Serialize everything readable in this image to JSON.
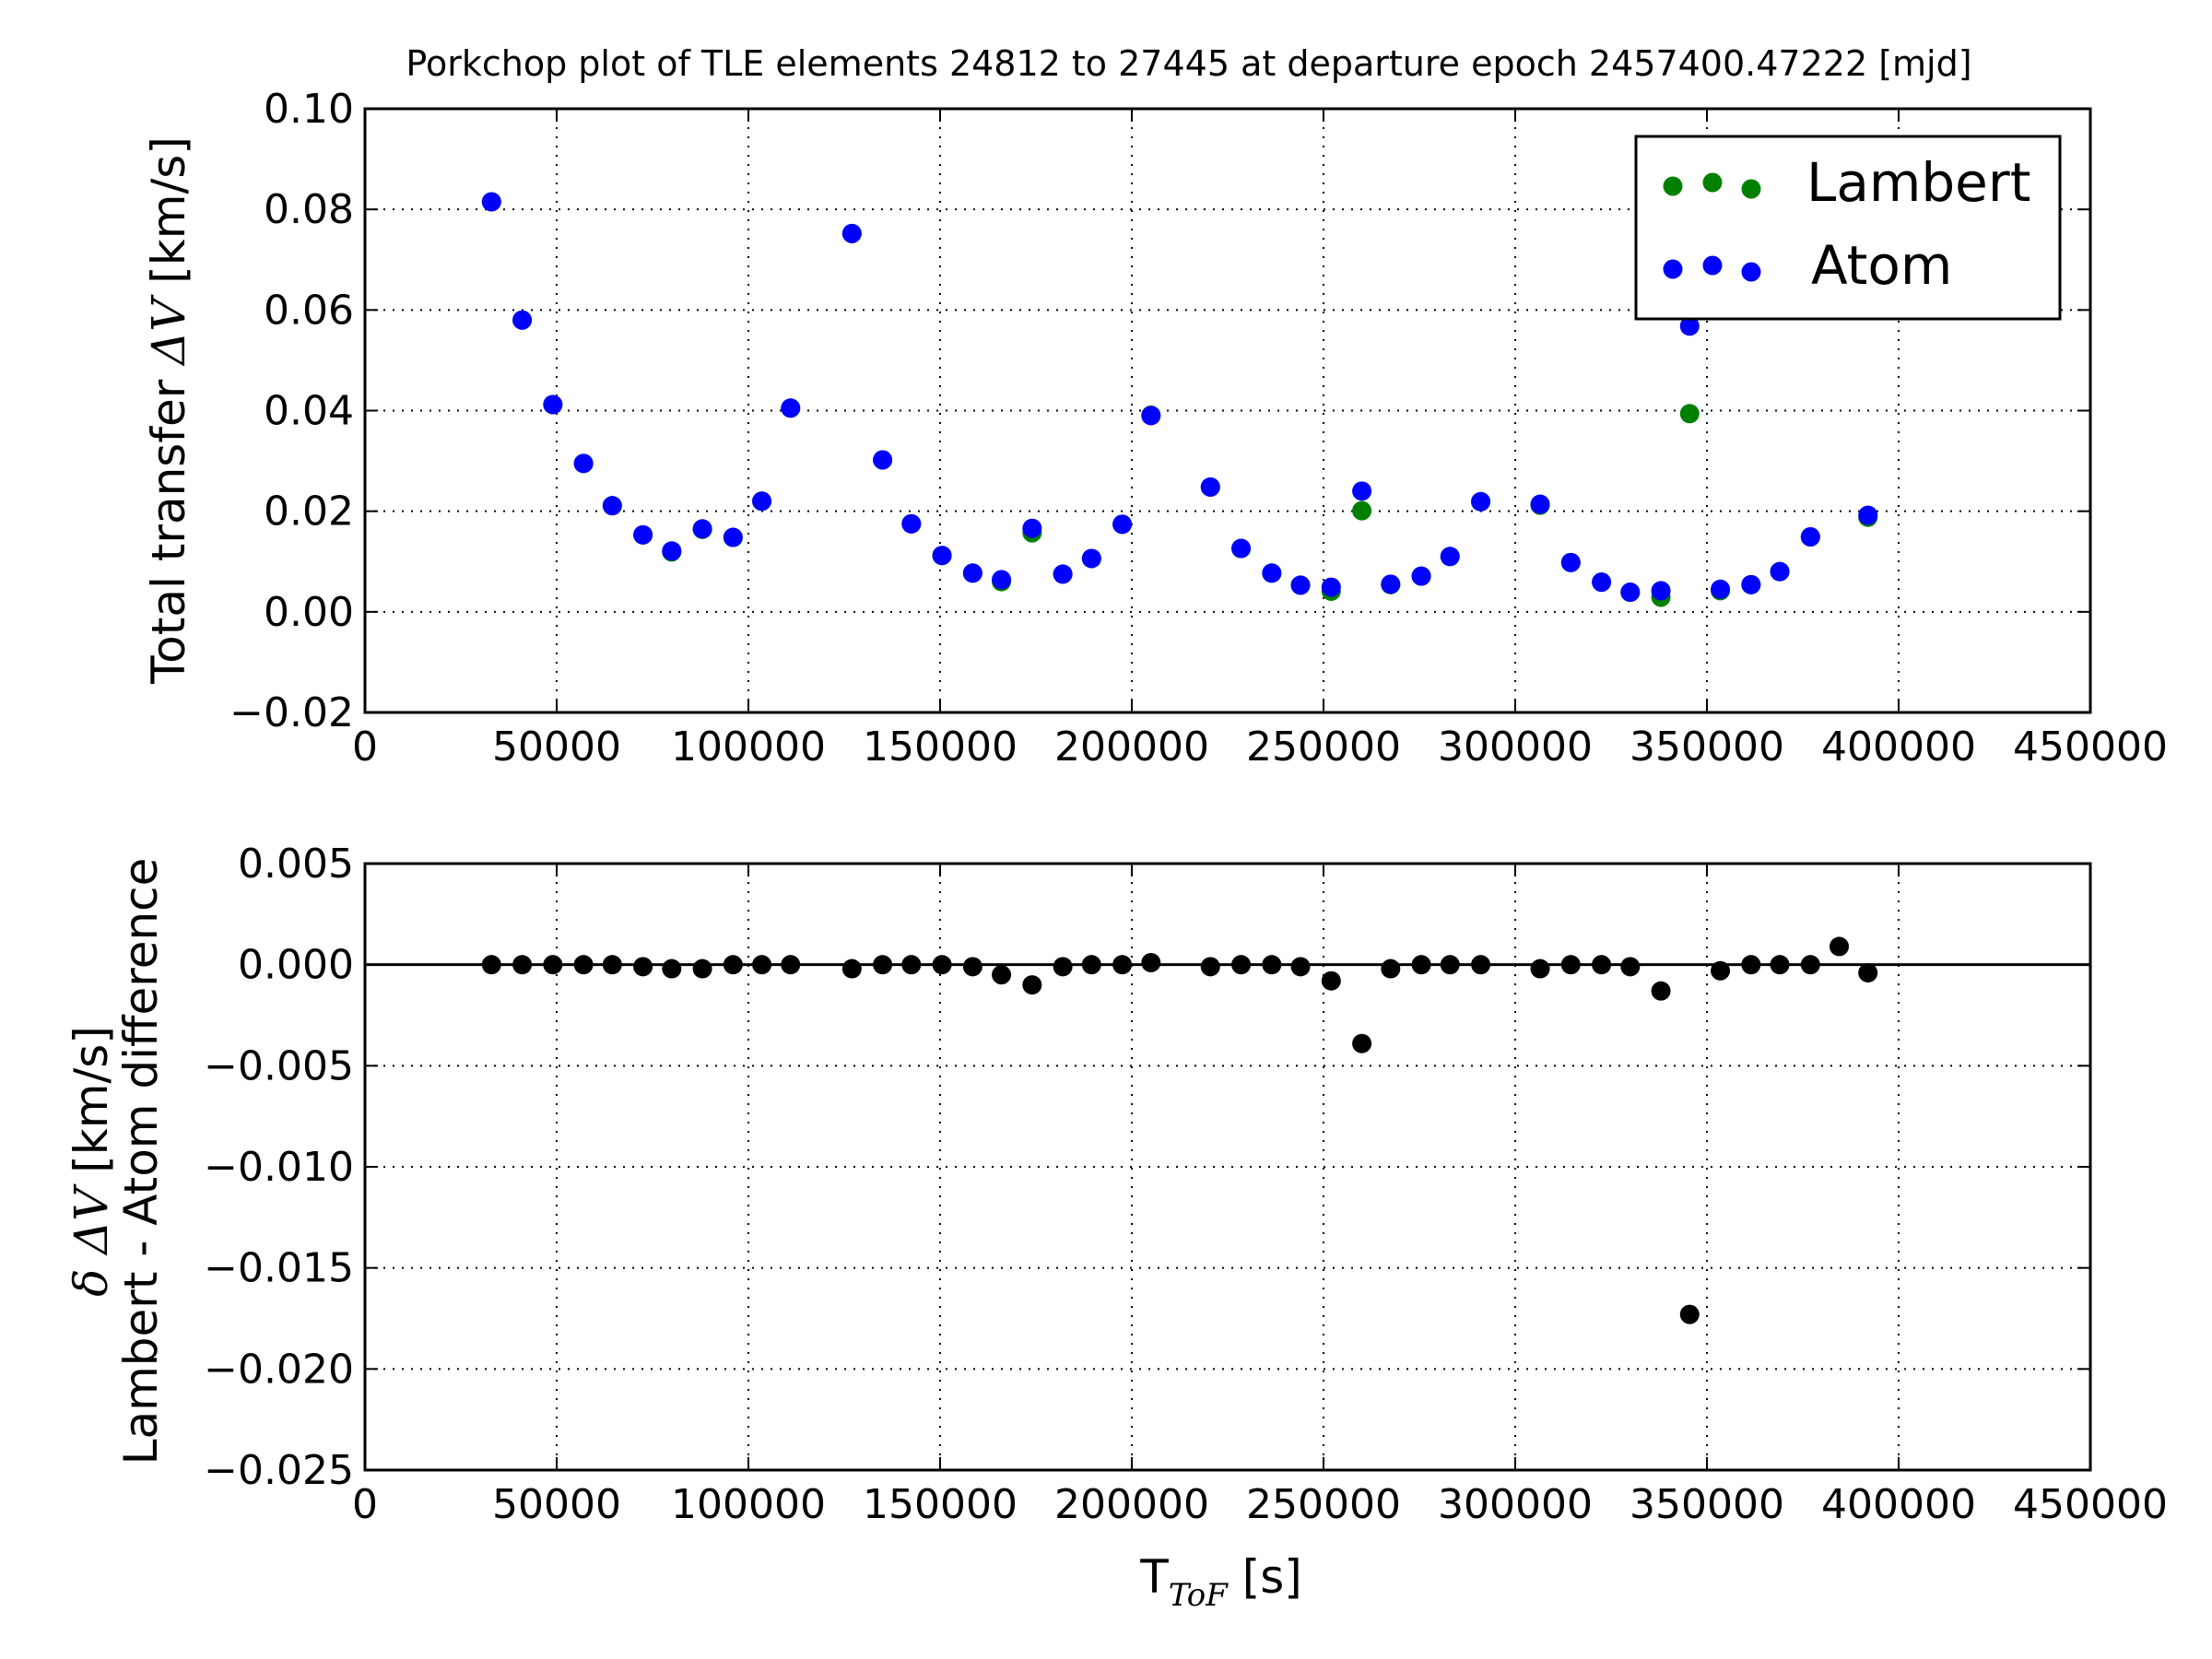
{
  "colors": {
    "lambert": "#008000",
    "atom": "#0000ff",
    "difference": "#000000"
  },
  "chart_data": [
    {
      "type": "scatter",
      "title": "Porkchop plot of TLE elements 24812 to 27445 at departure epoch 2457400.47222 [mjd]",
      "ylabel_prefix": "Total transfer ",
      "ylabel_math": "ΔV",
      "ylabel_suffix": " [km/s]",
      "xlim": [
        0,
        450000
      ],
      "ylim": [
        -0.02,
        0.1
      ],
      "xticks": [
        0,
        50000,
        100000,
        150000,
        200000,
        250000,
        300000,
        350000,
        400000,
        450000
      ],
      "xtick_labels": [
        "0",
        "50000",
        "100000",
        "150000",
        "200000",
        "250000",
        "300000",
        "350000",
        "400000",
        "450000"
      ],
      "yticks": [
        -0.02,
        0.0,
        0.02,
        0.04,
        0.06,
        0.08,
        0.1
      ],
      "ytick_labels": [
        "−0.02",
        "0.00",
        "0.02",
        "0.04",
        "0.06",
        "0.08",
        "0.10"
      ],
      "grid": true,
      "legend": {
        "placement": "top-right",
        "entries": [
          "Lambert",
          "Atom"
        ]
      },
      "series": [
        {
          "name": "Lambert",
          "x": [
            33000,
            41000,
            49000,
            57000,
            64500,
            72500,
            80000,
            88000,
            96000,
            103500,
            111000,
            127000,
            135000,
            142500,
            150500,
            158500,
            166000,
            174000,
            182000,
            189500,
            197500,
            205000,
            220500,
            228500,
            236500,
            244000,
            252000,
            260000,
            267500,
            275500,
            283000,
            291000,
            306500,
            314500,
            322500,
            330000,
            338000,
            345500,
            353500,
            361500,
            369000,
            377000,
            384500,
            392000
          ],
          "y": [
            0.0815,
            0.058,
            0.0412,
            0.0295,
            0.0211,
            0.0153,
            0.0119,
            0.0164,
            0.0148,
            0.022,
            0.0405,
            0.0752,
            0.0302,
            0.0175,
            0.0112,
            0.0077,
            0.006,
            0.0157,
            0.0075,
            0.0106,
            0.0174,
            0.0391,
            0.0248,
            0.0126,
            0.0077,
            0.0053,
            0.0041,
            0.0201,
            0.0054,
            0.0071,
            0.011,
            0.0219,
            0.0212,
            0.0098,
            0.0059,
            0.0039,
            0.0029,
            0.0394,
            0.0042,
            0.0054,
            0.008,
            0.0149,
            0.0621,
            0.0188
          ]
        },
        {
          "name": "Atom",
          "x": [
            33000,
            41000,
            49000,
            57000,
            64500,
            72500,
            80000,
            88000,
            96000,
            103500,
            111000,
            127000,
            135000,
            142500,
            150500,
            158500,
            166000,
            174000,
            182000,
            189500,
            197500,
            205000,
            220500,
            228500,
            236500,
            244000,
            252000,
            260000,
            267500,
            275500,
            283000,
            291000,
            306500,
            314500,
            322500,
            330000,
            338000,
            345500,
            353500,
            361500,
            369000,
            377000,
            384500,
            392000
          ],
          "y": [
            0.0815,
            0.058,
            0.0412,
            0.0295,
            0.0211,
            0.0153,
            0.0121,
            0.0165,
            0.0148,
            0.022,
            0.0405,
            0.0752,
            0.0302,
            0.0175,
            0.0112,
            0.0077,
            0.0064,
            0.0166,
            0.0075,
            0.0106,
            0.0174,
            0.039,
            0.0248,
            0.0126,
            0.0077,
            0.0053,
            0.0049,
            0.024,
            0.0055,
            0.0071,
            0.011,
            0.0219,
            0.0214,
            0.0098,
            0.0059,
            0.0039,
            0.0042,
            0.0568,
            0.0045,
            0.0054,
            0.008,
            0.0149,
            0.0612,
            0.0192
          ]
        }
      ]
    },
    {
      "type": "scatter",
      "ylabel_line1_math": "δ ΔV",
      "ylabel_line1_suffix": " [km/s]",
      "ylabel_line2": "Lambert - Atom difference",
      "xlabel_main": "T",
      "xlabel_sub": "ToF",
      "xlabel_suffix": " [s]",
      "xlim": [
        0,
        450000
      ],
      "ylim": [
        -0.025,
        0.005
      ],
      "xticks": [
        0,
        50000,
        100000,
        150000,
        200000,
        250000,
        300000,
        350000,
        400000,
        450000
      ],
      "xtick_labels": [
        "0",
        "50000",
        "100000",
        "150000",
        "200000",
        "250000",
        "300000",
        "350000",
        "400000",
        "450000"
      ],
      "yticks": [
        -0.025,
        -0.02,
        -0.015,
        -0.01,
        -0.005,
        0.0,
        0.005
      ],
      "ytick_labels": [
        "−0.025",
        "−0.020",
        "−0.015",
        "−0.010",
        "−0.005",
        "0.000",
        "0.005"
      ],
      "grid": true,
      "zero_line": true,
      "series": [
        {
          "x": [
            33000,
            41000,
            49000,
            57000,
            64500,
            72500,
            80000,
            88000,
            96000,
            103500,
            111000,
            127000,
            135000,
            142500,
            150500,
            158500,
            166000,
            174000,
            182000,
            189500,
            197500,
            205000,
            220500,
            228500,
            236500,
            244000,
            252000,
            260000,
            267500,
            275500,
            283000,
            291000,
            306500,
            314500,
            322500,
            330000,
            338000,
            345500,
            353500,
            361500,
            369000,
            377000,
            384500,
            392000
          ],
          "y": [
            0.0,
            0.0,
            0.0,
            0.0,
            0.0,
            -0.0001,
            -0.0002,
            -0.0002,
            0.0,
            0.0,
            0.0,
            -0.0002,
            0.0,
            0.0,
            0.0,
            -0.0001,
            -0.0005,
            -0.001,
            -0.0001,
            0.0,
            0.0,
            0.0001,
            -0.0001,
            0.0,
            0.0,
            -0.0001,
            -0.0008,
            -0.0039,
            -0.0002,
            0.0,
            0.0,
            0.0,
            -0.0002,
            0.0,
            0.0,
            -0.0001,
            -0.0013,
            -0.0173,
            -0.0003,
            0.0,
            0.0,
            0.0,
            0.0009,
            -0.0004
          ]
        }
      ]
    }
  ]
}
